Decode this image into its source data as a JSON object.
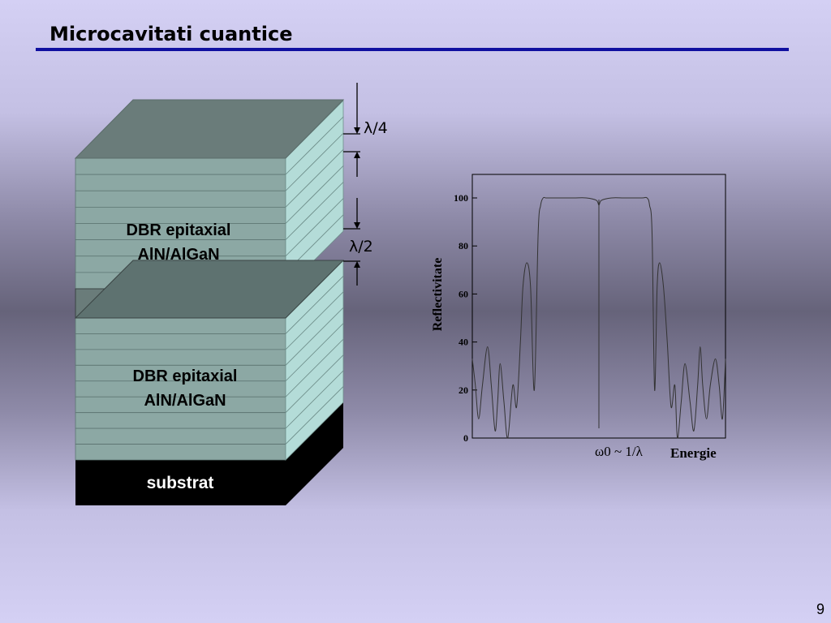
{
  "slide": {
    "title": "Microcavitati cuantice",
    "page_number": "9"
  },
  "structure": {
    "top_dbr_label_line1": "DBR epitaxial",
    "top_dbr_label_line2": "AlN/AlGaN",
    "bottom_dbr_label_line1": "DBR epitaxial",
    "bottom_dbr_label_line2": "AlN/AlGaN",
    "substrate_label": "substrat",
    "quarter_wave_label": "λ/4",
    "half_wave_label": "λ/2",
    "colors": {
      "layer_face": "#8ca8a4",
      "layer_side": "#b4dcd8",
      "cavity": "#6a7c7a",
      "substrate": "#000000"
    }
  },
  "chart_data": {
    "type": "line",
    "title": "",
    "xlabel": "Energie",
    "ylabel": "Reflectivitate",
    "x_marker_label": "ω0 ~ 1/λ",
    "ylim": [
      0,
      110
    ],
    "yticks": [
      0,
      20,
      40,
      60,
      80,
      100
    ],
    "xlim": [
      0,
      1
    ],
    "x": [
      0.0,
      0.012,
      0.025,
      0.04,
      0.06,
      0.075,
      0.09,
      0.1,
      0.11,
      0.125,
      0.14,
      0.16,
      0.175,
      0.19,
      0.2,
      0.215,
      0.23,
      0.245,
      0.26,
      0.27,
      0.28,
      0.29,
      0.3,
      0.31,
      0.33,
      0.4,
      0.45,
      0.49,
      0.5,
      0.51,
      0.55,
      0.6,
      0.67,
      0.69,
      0.7,
      0.71,
      0.72,
      0.73,
      0.74,
      0.755,
      0.77,
      0.785,
      0.8,
      0.81,
      0.825,
      0.84,
      0.86,
      0.875,
      0.89,
      0.9,
      0.91,
      0.925,
      0.94,
      0.96,
      0.975,
      0.988,
      1.0
    ],
    "series": [
      {
        "values": [
          33,
          22,
          8,
          22,
          38,
          22,
          3,
          15,
          31,
          15,
          0,
          22,
          13,
          40,
          63,
          73,
          63,
          20,
          85,
          97,
          100,
          100,
          100,
          100,
          100,
          100,
          100,
          99,
          97,
          99,
          100,
          100,
          100,
          100,
          97,
          85,
          20,
          63,
          73,
          63,
          40,
          13,
          22,
          0,
          15,
          31,
          15,
          3,
          22,
          38,
          22,
          8,
          22,
          33,
          22,
          8,
          33
        ]
      }
    ]
  }
}
